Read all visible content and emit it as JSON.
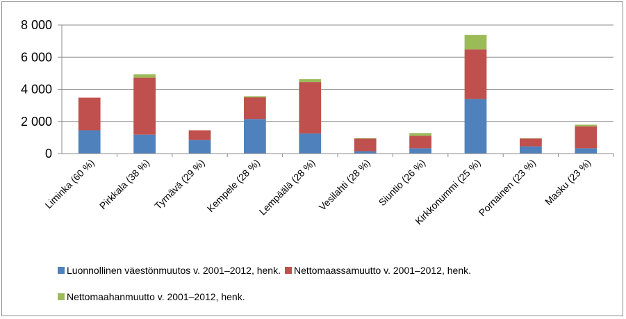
{
  "chart_data": {
    "type": "bar",
    "stacked": true,
    "categories": [
      "Liminka (60 %)",
      "Pirkkala (38 %)",
      "Tyrnävä (29 %)",
      "Kempele (28 %)",
      "Lempäälä (28 %)",
      "Vesilahti (28 %)",
      "Siuntio (26 %)",
      "Kirkkonummi (25 %)",
      "Pornainen (23 %)",
      "Masku (23 %)"
    ],
    "series": [
      {
        "name": "Luonnollinen väestönmuutos v. 2001–2012, henk.",
        "color": "#4f81bd",
        "values": [
          1450,
          1180,
          850,
          2150,
          1250,
          150,
          330,
          3400,
          450,
          330
        ]
      },
      {
        "name": "Nettomaassamuutto v. 2001–2012, henk.",
        "color": "#c0504d",
        "values": [
          2030,
          3550,
          600,
          1350,
          3200,
          780,
          780,
          3080,
          490,
          1370
        ]
      },
      {
        "name": "Nettomaahanmuutto v. 2001–2012, henk.",
        "color": "#9bbb59",
        "values": [
          0,
          200,
          0,
          70,
          180,
          30,
          170,
          910,
          20,
          100
        ]
      }
    ],
    "yticks": [
      "0",
      "2 000",
      "4 000",
      "6 000",
      "8 000"
    ],
    "ylim": [
      0,
      8000
    ],
    "ystep": 2000,
    "grid": true,
    "legend_position": "bottom"
  }
}
